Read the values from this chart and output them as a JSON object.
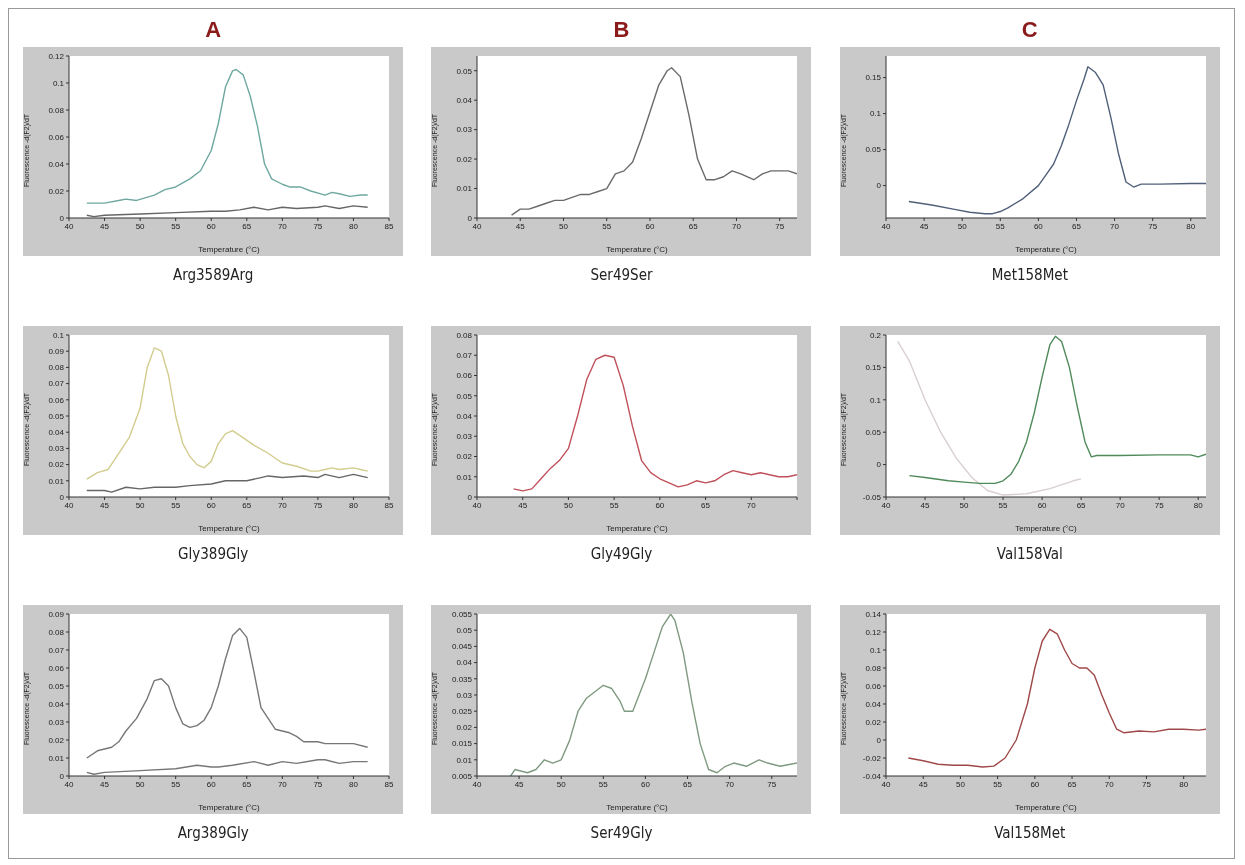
{
  "chart_data": [
    {
      "type": "line",
      "subtitle": "A",
      "title": "Arg3589Arg",
      "xlabel": "Temperature (°C)",
      "ylabel": "Fluorescence -d(F2)/dT",
      "xlim": [
        40,
        85
      ],
      "xticks": [
        40,
        45,
        50,
        55,
        60,
        65,
        70,
        75,
        80,
        85
      ],
      "ylim": [
        0,
        0.12
      ],
      "yticks": [
        0,
        0.02,
        0.04,
        0.06,
        0.08,
        0.1,
        0.12
      ],
      "series": [
        {
          "color": "#6fa8a0",
          "x": [
            42.5,
            45,
            47,
            48,
            49.5,
            52,
            53.5,
            55,
            57,
            58.5,
            60,
            61,
            62,
            63,
            63.5,
            64.5,
            65.5,
            66.5,
            67.5,
            68.5,
            70,
            71,
            72.5,
            74,
            76,
            77,
            78,
            79.5,
            81,
            82
          ],
          "values": [
            0.011,
            0.011,
            0.013,
            0.014,
            0.013,
            0.017,
            0.021,
            0.023,
            0.029,
            0.035,
            0.05,
            0.07,
            0.097,
            0.109,
            0.11,
            0.106,
            0.09,
            0.068,
            0.04,
            0.029,
            0.025,
            0.023,
            0.023,
            0.02,
            0.017,
            0.019,
            0.018,
            0.016,
            0.017,
            0.017
          ]
        },
        {
          "color": "#666666",
          "x": [
            42.5,
            43.5,
            45,
            50,
            55,
            60,
            62,
            64,
            66,
            68,
            70,
            72,
            75,
            76,
            78,
            80,
            82
          ],
          "values": [
            0.002,
            0.001,
            0.002,
            0.003,
            0.004,
            0.005,
            0.005,
            0.006,
            0.008,
            0.006,
            0.008,
            0.007,
            0.008,
            0.009,
            0.007,
            0.009,
            0.008
          ]
        }
      ]
    },
    {
      "type": "line",
      "subtitle": "B",
      "title": "Ser49Ser",
      "xlabel": "Temperature (°C)",
      "ylabel": "Fluorescence -d(F2)/dT",
      "xlim": [
        40,
        77
      ],
      "xticks": [
        40,
        45,
        50,
        55,
        60,
        65,
        70,
        75
      ],
      "ylim": [
        0,
        0.055
      ],
      "yticks": [
        0,
        0.01,
        0.02,
        0.03,
        0.04,
        0.05
      ],
      "series": [
        {
          "color": "#6a6a6a",
          "x": [
            44,
            45,
            46,
            47,
            48,
            49,
            50,
            51,
            52,
            53,
            54,
            55,
            56,
            57,
            58,
            59,
            60,
            61,
            62,
            62.5,
            63.5,
            64.5,
            65.5,
            66.5,
            67.5,
            68.5,
            69.5,
            70.5,
            72,
            73,
            74,
            75,
            76,
            77
          ],
          "values": [
            0.001,
            0.003,
            0.003,
            0.004,
            0.005,
            0.006,
            0.006,
            0.007,
            0.008,
            0.008,
            0.009,
            0.01,
            0.015,
            0.016,
            0.019,
            0.027,
            0.036,
            0.045,
            0.05,
            0.051,
            0.048,
            0.035,
            0.02,
            0.013,
            0.013,
            0.014,
            0.016,
            0.015,
            0.013,
            0.015,
            0.016,
            0.016,
            0.016,
            0.015
          ]
        }
      ]
    },
    {
      "type": "line",
      "subtitle": "C",
      "title": "Met158Met",
      "xlabel": "Temperature (°C)",
      "ylabel": "Fluorescence -d(F2)/dT",
      "xlim": [
        40,
        82
      ],
      "xticks": [
        40,
        45,
        50,
        55,
        60,
        65,
        70,
        75,
        80
      ],
      "ylim": [
        -0.045,
        0.18
      ],
      "yticks": [
        0,
        0.05,
        0.1,
        0.15
      ],
      "series": [
        {
          "color": "#50607a",
          "x": [
            43,
            46,
            49,
            51,
            53,
            54,
            55,
            56,
            58,
            60,
            61,
            62,
            63,
            64,
            65,
            66,
            66.5,
            67.5,
            68.5,
            69.5,
            70.5,
            71.5,
            72.5,
            73.5,
            76,
            80,
            82
          ],
          "values": [
            -0.022,
            -0.027,
            -0.033,
            -0.037,
            -0.039,
            -0.039,
            -0.036,
            -0.031,
            -0.018,
            0,
            0.015,
            0.03,
            0.055,
            0.085,
            0.118,
            0.148,
            0.165,
            0.157,
            0.14,
            0.095,
            0.045,
            0.005,
            -0.002,
            0.002,
            0.002,
            0.003,
            0.003
          ]
        }
      ]
    },
    {
      "type": "line",
      "title": "Gly389Gly",
      "xlabel": "Temperature (°C)",
      "ylabel": "Fluorescence -d(F2)/dT",
      "xlim": [
        40,
        85
      ],
      "xticks": [
        40,
        45,
        50,
        55,
        60,
        65,
        70,
        75,
        80,
        85
      ],
      "ylim": [
        0,
        0.1
      ],
      "yticks": [
        0,
        0.01,
        0.02,
        0.03,
        0.04,
        0.05,
        0.06,
        0.07,
        0.08,
        0.09,
        0.1
      ],
      "series": [
        {
          "color": "#d2cc8e",
          "x": [
            42.5,
            44,
            45.5,
            47,
            48.5,
            50,
            51,
            52,
            53,
            54,
            55,
            56,
            57,
            58,
            59,
            60,
            61,
            62,
            63,
            64,
            66,
            68,
            70,
            72,
            74,
            75,
            76,
            77,
            78,
            80,
            81,
            82
          ],
          "values": [
            0.011,
            0.015,
            0.017,
            0.027,
            0.037,
            0.055,
            0.08,
            0.092,
            0.09,
            0.075,
            0.05,
            0.033,
            0.025,
            0.02,
            0.018,
            0.022,
            0.033,
            0.039,
            0.041,
            0.038,
            0.032,
            0.027,
            0.021,
            0.019,
            0.016,
            0.016,
            0.017,
            0.018,
            0.017,
            0.018,
            0.017,
            0.016
          ]
        },
        {
          "color": "#666666",
          "x": [
            42.5,
            45,
            46,
            48,
            50,
            52,
            55,
            57,
            60,
            62,
            65,
            67,
            68,
            70,
            73,
            75,
            76,
            78,
            80,
            82
          ],
          "values": [
            0.004,
            0.004,
            0.003,
            0.006,
            0.005,
            0.006,
            0.006,
            0.007,
            0.008,
            0.01,
            0.01,
            0.012,
            0.013,
            0.012,
            0.013,
            0.012,
            0.014,
            0.012,
            0.014,
            0.012
          ]
        }
      ]
    },
    {
      "type": "line",
      "title": "Gly49Gly",
      "xlabel": "Temperature (°C)",
      "ylabel": "Fluorescence -d(F2)/dT",
      "xlim": [
        40,
        75
      ],
      "xticks": [
        40,
        45,
        50,
        55,
        60,
        65,
        70,
        {
          "value": 75,
          "label": null
        }
      ],
      "ylim": [
        0,
        0.08
      ],
      "yticks": [
        0,
        0.01,
        0.02,
        0.03,
        0.04,
        0.05,
        0.06,
        0.07,
        0.08
      ],
      "series": [
        {
          "color": "#c0505a",
          "x": [
            44,
            45,
            46,
            47,
            48,
            49,
            50,
            51,
            52,
            53,
            54,
            55,
            56,
            57,
            58,
            59,
            60,
            61,
            62,
            63,
            64,
            65,
            66,
            67,
            68,
            69,
            70,
            71,
            72,
            73,
            74,
            75
          ],
          "values": [
            0.004,
            0.003,
            0.004,
            0.009,
            0.014,
            0.018,
            0.024,
            0.04,
            0.058,
            0.068,
            0.07,
            0.069,
            0.055,
            0.035,
            0.018,
            0.012,
            0.009,
            0.007,
            0.005,
            0.006,
            0.008,
            0.007,
            0.008,
            0.011,
            0.013,
            0.012,
            0.011,
            0.012,
            0.011,
            0.01,
            0.01,
            0.011
          ]
        }
      ]
    },
    {
      "type": "line",
      "title": "Val158Val",
      "xlabel": "Temperature (°C)",
      "ylabel": "Fluorescence -d(F2)/dT",
      "xlim": [
        40,
        81
      ],
      "xticks": [
        40,
        45,
        50,
        55,
        60,
        65,
        70,
        75,
        80
      ],
      "ylim": [
        -0.05,
        0.2
      ],
      "yticks": [
        -0.05,
        0,
        0.05,
        0.1,
        0.15,
        0.2
      ],
      "series": [
        {
          "color": "#d9cfcf",
          "x": [
            41.5,
            43,
            45,
            47,
            49,
            51,
            53,
            55,
            58,
            61,
            64,
            65
          ],
          "values": [
            0.19,
            0.16,
            0.1,
            0.05,
            0.01,
            -0.02,
            -0.04,
            -0.047,
            -0.045,
            -0.037,
            -0.025,
            -0.022
          ]
        },
        {
          "color": "#4f8a5a",
          "x": [
            43,
            45,
            48,
            50,
            52,
            54,
            55,
            56,
            57,
            58,
            59,
            60,
            61,
            61.7,
            62.5,
            63.5,
            64.5,
            65.5,
            66.3,
            67,
            70,
            75,
            79,
            80,
            81
          ],
          "values": [
            -0.017,
            -0.02,
            -0.025,
            -0.027,
            -0.029,
            -0.029,
            -0.025,
            -0.015,
            0.005,
            0.035,
            0.08,
            0.135,
            0.185,
            0.198,
            0.19,
            0.15,
            0.09,
            0.035,
            0.012,
            0.014,
            0.014,
            0.015,
            0.015,
            0.012,
            0.016
          ]
        }
      ]
    },
    {
      "type": "line",
      "title": "Arg389Gly",
      "xlabel": "Temperature (°C)",
      "ylabel": "Fluorescence -d(F2)/dT",
      "xlim": [
        40,
        85
      ],
      "xticks": [
        40,
        45,
        50,
        55,
        60,
        65,
        70,
        75,
        80,
        85
      ],
      "ylim": [
        0,
        0.09
      ],
      "yticks": [
        0,
        0.01,
        0.02,
        0.03,
        0.04,
        0.05,
        0.06,
        0.07,
        0.08,
        0.09
      ],
      "series": [
        {
          "color": "#777777",
          "x": [
            42.5,
            44,
            45,
            46,
            47,
            48,
            49.5,
            51,
            52,
            53,
            54,
            55,
            56,
            57,
            58,
            59,
            60,
            61,
            62,
            63,
            64,
            65,
            66,
            67,
            68,
            69,
            71,
            72,
            73,
            75,
            76,
            78,
            80,
            82
          ],
          "values": [
            0.01,
            0.014,
            0.015,
            0.016,
            0.019,
            0.025,
            0.032,
            0.043,
            0.053,
            0.054,
            0.05,
            0.038,
            0.029,
            0.027,
            0.028,
            0.031,
            0.038,
            0.05,
            0.065,
            0.078,
            0.082,
            0.077,
            0.058,
            0.038,
            0.032,
            0.026,
            0.024,
            0.022,
            0.019,
            0.019,
            0.018,
            0.018,
            0.018,
            0.016
          ]
        },
        {
          "color": "#777777",
          "x": [
            42.5,
            43.5,
            45,
            50,
            55,
            58,
            60,
            61,
            63,
            66,
            68,
            70,
            72,
            75,
            76,
            78,
            80,
            82
          ],
          "values": [
            0.002,
            0.001,
            0.002,
            0.003,
            0.004,
            0.006,
            0.005,
            0.005,
            0.006,
            0.008,
            0.006,
            0.008,
            0.007,
            0.009,
            0.009,
            0.007,
            0.008,
            0.008
          ]
        }
      ]
    },
    {
      "type": "line",
      "title": "Ser49Gly",
      "xlabel": "Temperature (°C)",
      "ylabel": "Fluorescence -d(F2)/dT",
      "xlim": [
        40,
        78
      ],
      "xticks": [
        40,
        45,
        50,
        55,
        60,
        65,
        70,
        75
      ],
      "ylim": [
        0.005,
        0.055
      ],
      "yticks": [
        0.005,
        0.01,
        0.015,
        0.02,
        0.025,
        0.03,
        0.035,
        0.04,
        0.045,
        0.05,
        0.055
      ],
      "series": [
        {
          "color": "#7f9a80",
          "x": [
            44,
            44.5,
            46,
            47,
            48,
            49,
            50,
            51,
            52,
            53,
            54,
            55,
            56,
            57,
            57.5,
            58.5,
            60,
            61,
            62,
            63,
            63.5,
            64.5,
            65.5,
            66.5,
            67.5,
            68.5,
            69.5,
            70.5,
            72,
            73.5,
            74.5,
            76,
            78
          ],
          "values": [
            0.005,
            0.007,
            0.006,
            0.007,
            0.01,
            0.009,
            0.01,
            0.016,
            0.025,
            0.029,
            0.031,
            0.033,
            0.032,
            0.028,
            0.025,
            0.025,
            0.035,
            0.043,
            0.051,
            0.055,
            0.053,
            0.043,
            0.028,
            0.015,
            0.007,
            0.006,
            0.008,
            0.009,
            0.008,
            0.01,
            0.009,
            0.008,
            0.009
          ]
        }
      ]
    },
    {
      "type": "line",
      "title": "Val158Met",
      "xlabel": "Temperature (°C)",
      "ylabel": "Fluorescence -d(F2)/dT",
      "xlim": [
        40,
        83
      ],
      "xticks": [
        40,
        45,
        50,
        55,
        60,
        65,
        70,
        75,
        80
      ],
      "ylim": [
        -0.04,
        0.14
      ],
      "yticks": [
        -0.04,
        -0.02,
        0,
        0.02,
        0.04,
        0.06,
        0.08,
        0.1,
        0.12,
        0.14
      ],
      "series": [
        {
          "color": "#a04848",
          "x": [
            43,
            45,
            47,
            49,
            51,
            53,
            54.5,
            56,
            57.5,
            59,
            60,
            61,
            62,
            63,
            64,
            65,
            66,
            67,
            68,
            69,
            70,
            71,
            72,
            74,
            76,
            78,
            80,
            82,
            83
          ],
          "values": [
            -0.02,
            -0.023,
            -0.027,
            -0.028,
            -0.028,
            -0.03,
            -0.029,
            -0.02,
            0,
            0.04,
            0.08,
            0.11,
            0.123,
            0.118,
            0.1,
            0.085,
            0.08,
            0.08,
            0.072,
            0.05,
            0.03,
            0.012,
            0.008,
            0.01,
            0.009,
            0.012,
            0.012,
            0.011,
            0.012
          ]
        }
      ]
    }
  ]
}
